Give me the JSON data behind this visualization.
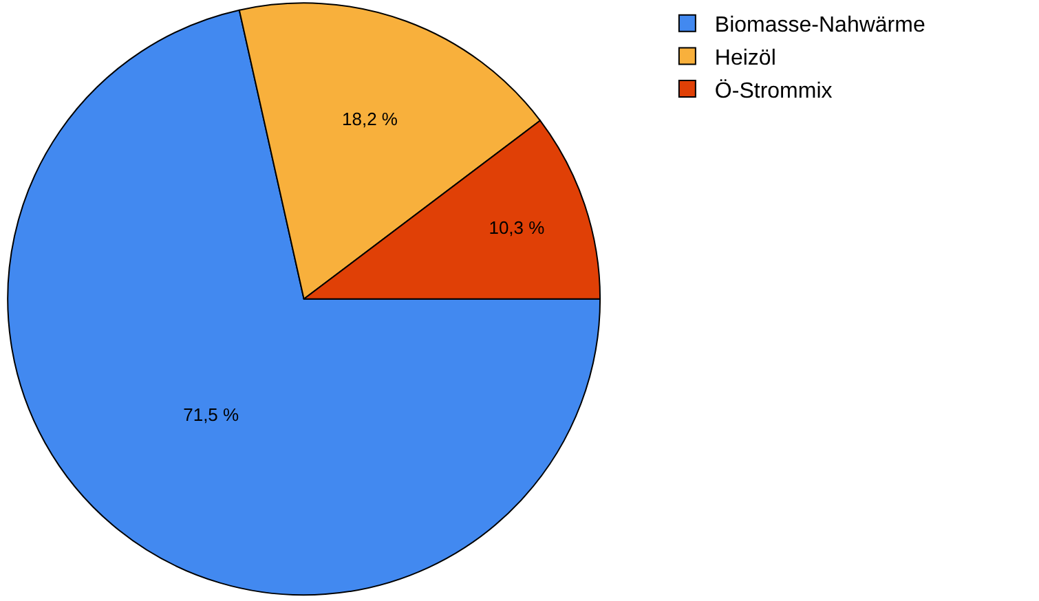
{
  "chart_data": {
    "type": "pie",
    "categories": [
      "Biomasse-Nahwärme",
      "Heizöl",
      "Ö-Strommix"
    ],
    "values": [
      71.5,
      18.2,
      10.3
    ],
    "value_labels": [
      "71,5 %",
      "18,2 %",
      "10,3 %"
    ],
    "colors": [
      "#4289f0",
      "#f8b03c",
      "#e04006"
    ],
    "legend": "top right"
  }
}
